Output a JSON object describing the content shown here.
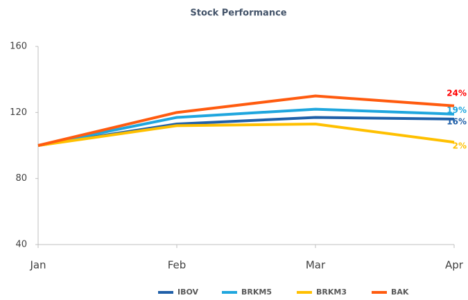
{
  "chart_data": {
    "type": "line",
    "title": "Stock Performance",
    "categories": [
      "Jan",
      "Feb",
      "Mar",
      "Apr"
    ],
    "series": [
      {
        "name": "IBOV",
        "color": "#1f5fa8",
        "values": [
          100,
          113,
          117,
          116
        ],
        "end_label": "16%",
        "label_color": "#1f5fa8"
      },
      {
        "name": "BRKM5",
        "color": "#1fa6de",
        "values": [
          100,
          117,
          122,
          119
        ],
        "end_label": "19%",
        "label_color": "#1fa6de"
      },
      {
        "name": "BRKM3",
        "color": "#ffc000",
        "values": [
          100,
          112,
          113,
          102
        ],
        "end_label": "2%",
        "label_color": "#ffc000"
      },
      {
        "name": "BAK",
        "color": "#ff5b0f",
        "values": [
          100,
          120,
          130,
          124
        ],
        "end_label": "24%",
        "label_color": "#ff0000"
      }
    ],
    "ylim": [
      40,
      160
    ],
    "yticks": [
      40,
      80,
      120,
      160
    ],
    "grid": false,
    "legend": "bottom"
  }
}
